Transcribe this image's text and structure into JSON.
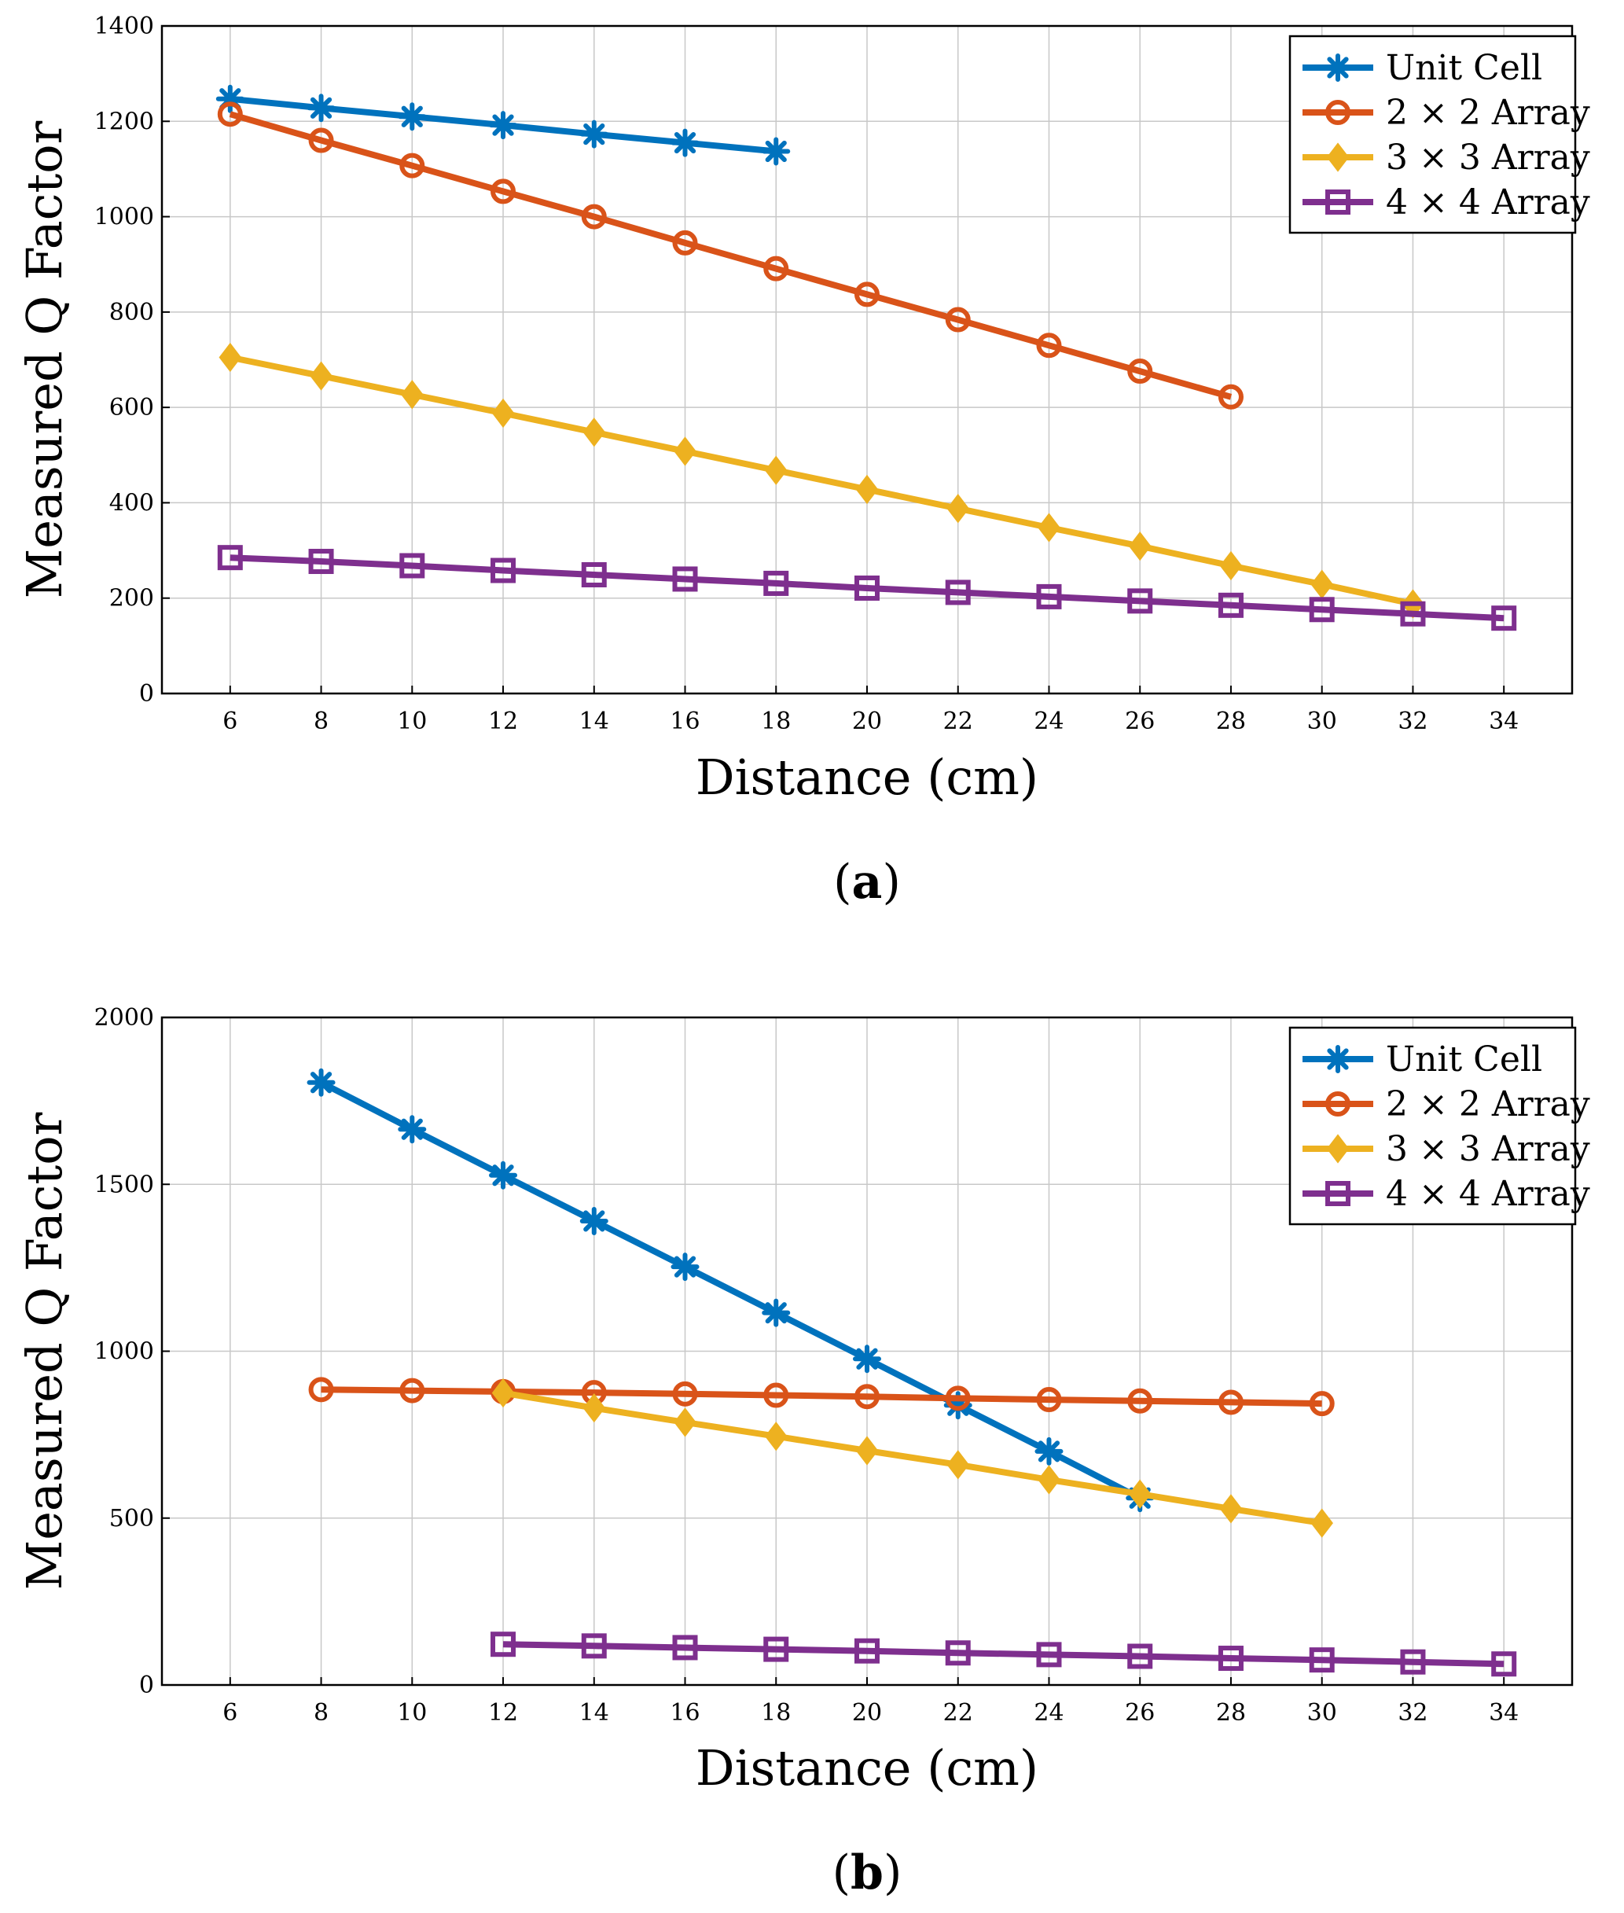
{
  "chart_data": [
    {
      "type": "line",
      "panel": "a",
      "panel_label": "a",
      "xlabel": "Distance (cm)",
      "ylabel": "Measured Q Factor",
      "xlim": [
        4.5,
        35.5
      ],
      "ylim": [
        0,
        1400
      ],
      "xticks": [
        6,
        8,
        10,
        12,
        14,
        16,
        18,
        20,
        22,
        24,
        26,
        28,
        30,
        32,
        34
      ],
      "yticks": [
        0,
        200,
        400,
        600,
        800,
        1000,
        1200,
        1400
      ],
      "grid": true,
      "legend_position": "top-right",
      "series": [
        {
          "name": "Unit Cell",
          "color": "#0072BD",
          "marker": "asterisk",
          "x": [
            6,
            8,
            10,
            12,
            14,
            16,
            18
          ],
          "values": [
            1247,
            1228,
            1210,
            1192,
            1173,
            1155,
            1137
          ]
        },
        {
          "name": "2 × 2 Array",
          "color": "#D95319",
          "marker": "circle",
          "x": [
            6,
            8,
            10,
            12,
            14,
            16,
            18,
            20,
            22,
            24,
            26,
            28
          ],
          "values": [
            1215,
            1160,
            1107,
            1053,
            1000,
            945,
            891,
            837,
            784,
            730,
            676,
            622
          ]
        },
        {
          "name": "3 × 3 Array",
          "color": "#EDB120",
          "marker": "diamond",
          "x": [
            6,
            8,
            10,
            12,
            14,
            16,
            18,
            20,
            22,
            24,
            26,
            28,
            30,
            32
          ],
          "values": [
            705,
            666,
            627,
            588,
            548,
            508,
            468,
            428,
            388,
            348,
            309,
            268,
            229,
            188
          ]
        },
        {
          "name": "4 × 4 Array",
          "color": "#7E2F8E",
          "marker": "square",
          "x": [
            6,
            8,
            10,
            12,
            14,
            16,
            18,
            20,
            22,
            24,
            26,
            28,
            30,
            32,
            34
          ],
          "values": [
            285,
            277,
            268,
            258,
            249,
            240,
            231,
            221,
            212,
            203,
            194,
            185,
            176,
            167,
            158
          ]
        }
      ]
    },
    {
      "type": "line",
      "panel": "b",
      "panel_label": "b",
      "xlabel": "Distance (cm)",
      "ylabel": "Measured Q Factor",
      "xlim": [
        4.5,
        35.5
      ],
      "ylim": [
        0,
        2000
      ],
      "xticks": [
        6,
        8,
        10,
        12,
        14,
        16,
        18,
        20,
        22,
        24,
        26,
        28,
        30,
        32,
        34
      ],
      "yticks": [
        0,
        500,
        1000,
        1500,
        2000
      ],
      "grid": true,
      "legend_position": "top-right",
      "series": [
        {
          "name": "Unit Cell",
          "color": "#0072BD",
          "marker": "asterisk",
          "x": [
            8,
            10,
            12,
            14,
            16,
            18,
            20,
            22,
            24,
            26
          ],
          "values": [
            1805,
            1665,
            1527,
            1390,
            1253,
            1115,
            977,
            838,
            700,
            560
          ]
        },
        {
          "name": "2 × 2 Array",
          "color": "#D95319",
          "marker": "circle",
          "x": [
            8,
            10,
            12,
            14,
            16,
            18,
            20,
            22,
            24,
            26,
            28,
            30
          ],
          "values": [
            885,
            882,
            879,
            876,
            872,
            868,
            864,
            859,
            855,
            851,
            847,
            843
          ]
        },
        {
          "name": "3 × 3 Array",
          "color": "#EDB120",
          "marker": "diamond",
          "x": [
            12,
            14,
            16,
            18,
            20,
            22,
            24,
            26,
            28,
            30
          ],
          "values": [
            875,
            830,
            787,
            745,
            702,
            660,
            615,
            572,
            528,
            485
          ]
        },
        {
          "name": "4 × 4 Array",
          "color": "#7E2F8E",
          "marker": "square",
          "x": [
            12,
            14,
            16,
            18,
            20,
            22,
            24,
            26,
            28,
            30,
            32,
            34
          ],
          "values": [
            122,
            117,
            112,
            107,
            102,
            96,
            91,
            86,
            80,
            75,
            69,
            63
          ]
        }
      ]
    }
  ]
}
